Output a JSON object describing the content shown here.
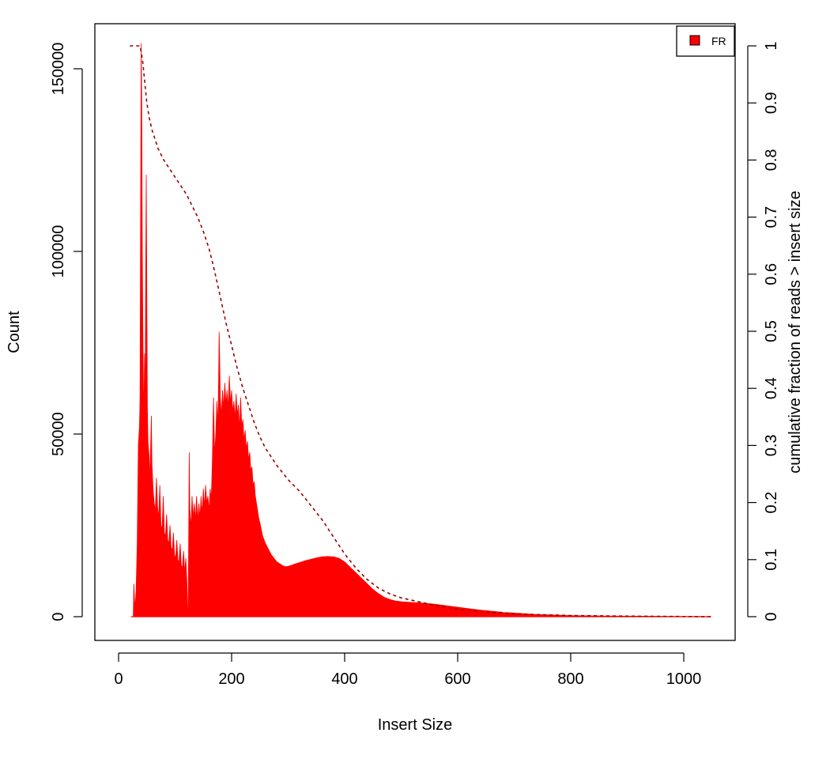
{
  "chart_data": {
    "type": "area",
    "title": "",
    "xlabel": "Insert Size",
    "ylabel": "Count",
    "ylabel_right": "cumulative fraction of reads > insert size",
    "xlim": [
      0,
      1050
    ],
    "ylim": [
      0,
      160000
    ],
    "ylim_right": [
      0,
      1
    ],
    "x_ticks": [
      0,
      200,
      400,
      600,
      800,
      1000
    ],
    "y_ticks": [
      0,
      50000,
      100000,
      150000
    ],
    "y_ticks_right": [
      0,
      0.1,
      0.2,
      0.3,
      0.4,
      0.5,
      0.6,
      0.7,
      0.8,
      0.9,
      1
    ],
    "grid": false,
    "legend_position": "top-right",
    "series": [
      {
        "name": "FR",
        "kind": "histogram",
        "color": "#ff0000",
        "points": [
          [
            22,
            0
          ],
          [
            26,
            0
          ],
          [
            27,
            9000
          ],
          [
            29,
            2000
          ],
          [
            31,
            7000
          ],
          [
            33,
            20000
          ],
          [
            35,
            47000
          ],
          [
            37,
            52000
          ],
          [
            38,
            60000
          ],
          [
            39,
            112000
          ],
          [
            40,
            157000
          ],
          [
            41,
            140000
          ],
          [
            42,
            100000
          ],
          [
            43,
            78000
          ],
          [
            44,
            62000
          ],
          [
            45,
            58000
          ],
          [
            46,
            72000
          ],
          [
            47,
            55000
          ],
          [
            48,
            95000
          ],
          [
            49,
            121000
          ],
          [
            50,
            88000
          ],
          [
            51,
            57000
          ],
          [
            52,
            48000
          ],
          [
            54,
            44000
          ],
          [
            55,
            37000
          ],
          [
            57,
            48000
          ],
          [
            58,
            55000
          ],
          [
            59,
            42000
          ],
          [
            61,
            35000
          ],
          [
            63,
            31000
          ],
          [
            65,
            29000
          ],
          [
            67,
            38000
          ],
          [
            69,
            30000
          ],
          [
            71,
            27000
          ],
          [
            73,
            36000
          ],
          [
            75,
            25000
          ],
          [
            77,
            24000
          ],
          [
            79,
            33000
          ],
          [
            81,
            23000
          ],
          [
            83,
            22000
          ],
          [
            85,
            28000
          ],
          [
            87,
            21000
          ],
          [
            89,
            20000
          ],
          [
            91,
            25000
          ],
          [
            93,
            19000
          ],
          [
            95,
            18000
          ],
          [
            97,
            23000
          ],
          [
            99,
            17000
          ],
          [
            101,
            16000
          ],
          [
            103,
            21000
          ],
          [
            105,
            15500
          ],
          [
            107,
            15000
          ],
          [
            109,
            20000
          ],
          [
            111,
            14000
          ],
          [
            113,
            13500
          ],
          [
            115,
            18000
          ],
          [
            117,
            12000
          ],
          [
            119,
            16000
          ],
          [
            121,
            9000
          ],
          [
            122,
            2000
          ],
          [
            123,
            0
          ],
          [
            124,
            20000
          ],
          [
            125,
            45000
          ],
          [
            126,
            30000
          ],
          [
            128,
            24000
          ],
          [
            130,
            33000
          ],
          [
            132,
            27000
          ],
          [
            134,
            31000
          ],
          [
            136,
            26000
          ],
          [
            138,
            33000
          ],
          [
            140,
            26000
          ],
          [
            142,
            31000
          ],
          [
            144,
            27000
          ],
          [
            146,
            33000
          ],
          [
            148,
            28000
          ],
          [
            150,
            35000
          ],
          [
            152,
            30000
          ],
          [
            154,
            36000
          ],
          [
            156,
            31000
          ],
          [
            158,
            33000
          ],
          [
            160,
            29000
          ],
          [
            162,
            35000
          ],
          [
            164,
            32000
          ],
          [
            166,
            43000
          ],
          [
            168,
            60000
          ],
          [
            170,
            44000
          ],
          [
            172,
            50000
          ],
          [
            174,
            59000
          ],
          [
            176,
            52000
          ],
          [
            178,
            78000
          ],
          [
            180,
            60000
          ],
          [
            182,
            55000
          ],
          [
            184,
            62000
          ],
          [
            186,
            57000
          ],
          [
            188,
            64000
          ],
          [
            190,
            58000
          ],
          [
            192,
            62000
          ],
          [
            194,
            57000
          ],
          [
            196,
            66000
          ],
          [
            198,
            58000
          ],
          [
            200,
            62000
          ],
          [
            202,
            56000
          ],
          [
            204,
            59000
          ],
          [
            206,
            54000
          ],
          [
            208,
            61000
          ],
          [
            210,
            55000
          ],
          [
            212,
            58000
          ],
          [
            214,
            51000
          ],
          [
            216,
            60000
          ],
          [
            218,
            52000
          ],
          [
            220,
            54000
          ],
          [
            222,
            48000
          ],
          [
            224,
            51000
          ],
          [
            226,
            46000
          ],
          [
            228,
            48000
          ],
          [
            230,
            43000
          ],
          [
            232,
            45000
          ],
          [
            234,
            40000
          ],
          [
            236,
            41000
          ],
          [
            238,
            36000
          ],
          [
            240,
            37000
          ],
          [
            242,
            33000
          ],
          [
            245,
            30000
          ],
          [
            248,
            27000
          ],
          [
            251,
            25000
          ],
          [
            255,
            22000
          ],
          [
            260,
            20000
          ],
          [
            265,
            18500
          ],
          [
            270,
            17000
          ],
          [
            275,
            16000
          ],
          [
            280,
            15000
          ],
          [
            285,
            14500
          ],
          [
            290,
            14000
          ],
          [
            295,
            13700
          ],
          [
            300,
            13800
          ],
          [
            305,
            14000
          ],
          [
            310,
            14300
          ],
          [
            320,
            14800
          ],
          [
            330,
            15300
          ],
          [
            340,
            15700
          ],
          [
            350,
            16100
          ],
          [
            360,
            16400
          ],
          [
            370,
            16500
          ],
          [
            380,
            16400
          ],
          [
            390,
            16000
          ],
          [
            400,
            15000
          ],
          [
            410,
            13500
          ],
          [
            420,
            12000
          ],
          [
            430,
            10500
          ],
          [
            440,
            9000
          ],
          [
            450,
            7500
          ],
          [
            460,
            6300
          ],
          [
            470,
            5300
          ],
          [
            480,
            4700
          ],
          [
            490,
            4300
          ],
          [
            500,
            4100
          ],
          [
            520,
            3900
          ],
          [
            540,
            3700
          ],
          [
            560,
            3400
          ],
          [
            580,
            3000
          ],
          [
            600,
            2600
          ],
          [
            620,
            2200
          ],
          [
            640,
            1800
          ],
          [
            660,
            1500
          ],
          [
            680,
            1200
          ],
          [
            700,
            1000
          ],
          [
            720,
            800
          ],
          [
            740,
            600
          ],
          [
            760,
            500
          ],
          [
            780,
            400
          ],
          [
            800,
            300
          ],
          [
            850,
            200
          ],
          [
            900,
            150
          ],
          [
            950,
            100
          ],
          [
            1000,
            60
          ],
          [
            1048,
            30
          ]
        ]
      },
      {
        "name": "",
        "kind": "cumulative",
        "axis": "right",
        "color": "#990000",
        "points": [
          [
            20,
            1
          ],
          [
            38,
            1
          ],
          [
            40,
            0.99
          ],
          [
            43,
            0.97
          ],
          [
            46,
            0.94
          ],
          [
            50,
            0.9
          ],
          [
            55,
            0.87
          ],
          [
            60,
            0.85
          ],
          [
            70,
            0.82
          ],
          [
            80,
            0.8
          ],
          [
            90,
            0.785
          ],
          [
            100,
            0.77
          ],
          [
            110,
            0.755
          ],
          [
            120,
            0.74
          ],
          [
            130,
            0.72
          ],
          [
            140,
            0.7
          ],
          [
            150,
            0.675
          ],
          [
            160,
            0.645
          ],
          [
            170,
            0.605
          ],
          [
            180,
            0.56
          ],
          [
            190,
            0.515
          ],
          [
            200,
            0.475
          ],
          [
            210,
            0.435
          ],
          [
            220,
            0.4
          ],
          [
            230,
            0.37
          ],
          [
            240,
            0.34
          ],
          [
            250,
            0.315
          ],
          [
            260,
            0.295
          ],
          [
            280,
            0.265
          ],
          [
            300,
            0.24
          ],
          [
            320,
            0.22
          ],
          [
            340,
            0.195
          ],
          [
            360,
            0.17
          ],
          [
            380,
            0.14
          ],
          [
            400,
            0.11
          ],
          [
            420,
            0.085
          ],
          [
            440,
            0.065
          ],
          [
            460,
            0.05
          ],
          [
            480,
            0.04
          ],
          [
            500,
            0.033
          ],
          [
            550,
            0.022
          ],
          [
            600,
            0.013
          ],
          [
            650,
            0.008
          ],
          [
            700,
            0.005
          ],
          [
            800,
            0.002
          ],
          [
            900,
            0.001
          ],
          [
            1048,
            0
          ]
        ]
      }
    ]
  }
}
